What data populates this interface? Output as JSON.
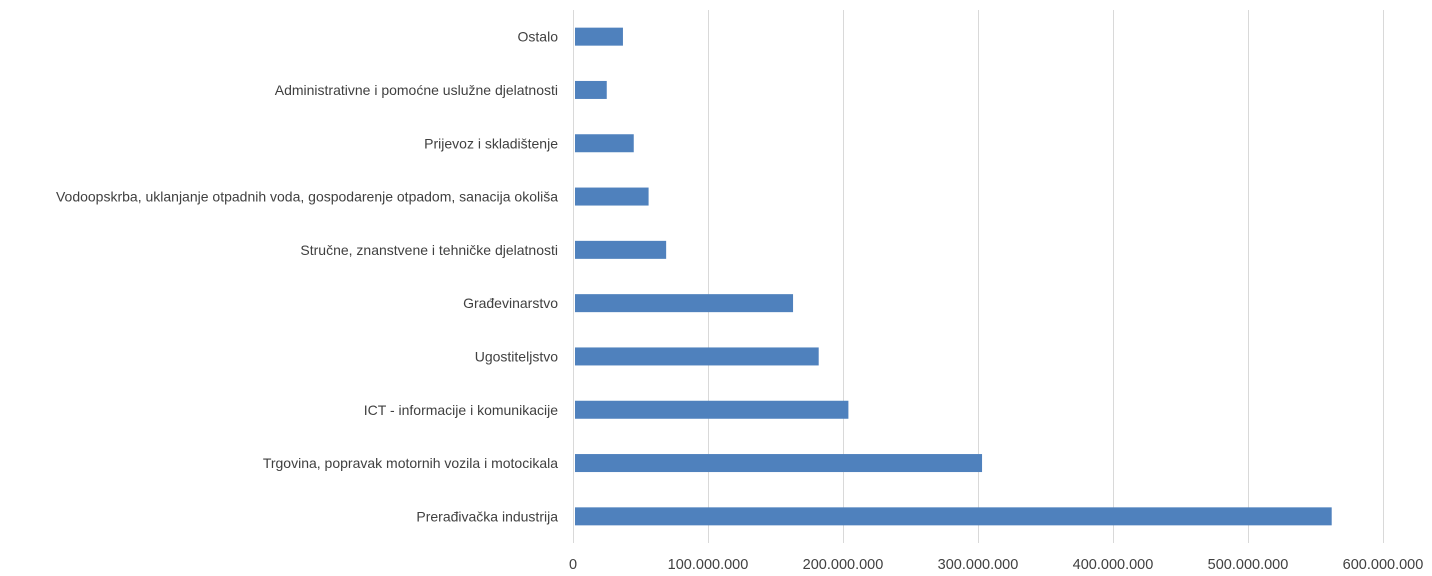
{
  "chart_data": {
    "type": "bar",
    "orientation": "horizontal",
    "title": "",
    "xlabel": "",
    "ylabel": "",
    "xlim": [
      0,
      600000000
    ],
    "tick_values": [
      0,
      100000000,
      200000000,
      300000000,
      400000000,
      500000000,
      600000000
    ],
    "tick_labels": [
      "0",
      "100.000.000",
      "200.000.000",
      "300.000.000",
      "400.000.000",
      "500.000.000",
      "600.000.000"
    ],
    "grid": true,
    "legend": "none",
    "bar_color": "#4f81bd",
    "categories": [
      "Ostalo",
      "Administrativne i pomoćne uslužne djelatnosti",
      "Prijevoz i skladištenje",
      "Vodoopskrba, uklanjanje otpadnih voda, gospodarenje otpadom, sanacija okoliša",
      "Stručne, znanstvene i tehničke djelatnosti",
      "Građevinarstvo",
      "Ugostiteljstvo",
      "ICT - informacije i komunikacije",
      "Trgovina, popravak motornih vozila i motocikala",
      "Prerađivačka industrija"
    ],
    "values": [
      37000000,
      25000000,
      45000000,
      56000000,
      69000000,
      163000000,
      182000000,
      204000000,
      303000000,
      562000000
    ]
  }
}
